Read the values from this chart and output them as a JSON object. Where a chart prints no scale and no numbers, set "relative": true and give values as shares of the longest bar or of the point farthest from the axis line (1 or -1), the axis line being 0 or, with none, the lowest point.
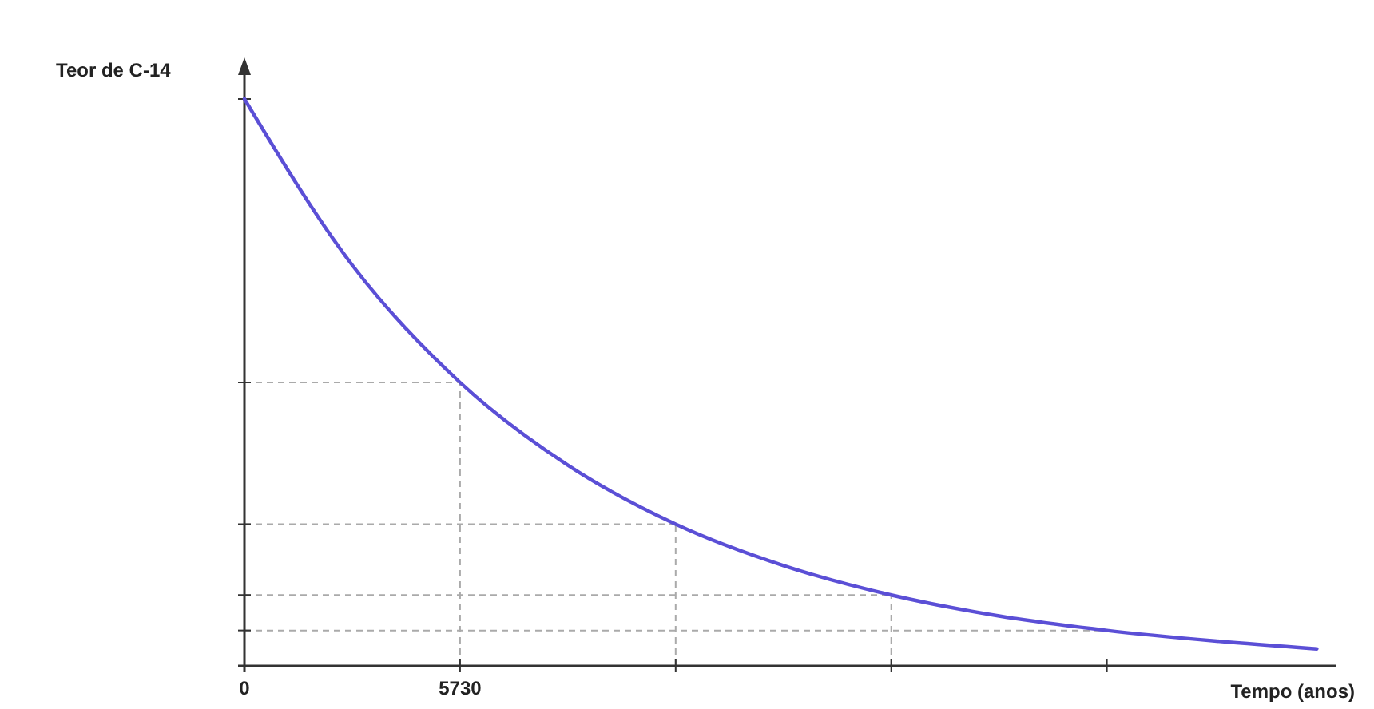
{
  "chart_data": {
    "type": "line",
    "relative": true,
    "ylabel": "Teor de C-14",
    "xlabel": "Tempo (anos)",
    "xlim": [
      0,
      29000
    ],
    "xticks": [
      0,
      5730,
      {
        "value": 11460,
        "label": null
      },
      {
        "value": 17190,
        "label": null
      },
      {
        "value": 22920,
        "label": null
      }
    ],
    "series": [
      {
        "color": "#5b4fd6",
        "x": [
          0,
          2865,
          5730,
          8595,
          11460,
          14325,
          17190,
          20055,
          22920,
          25785,
          28500
        ],
        "values": [
          1,
          0.707,
          0.5,
          0.354,
          0.25,
          0.177,
          0.125,
          0.088,
          0.0625,
          0.044,
          0.03
        ]
      }
    ],
    "ref_lines": [
      {
        "axis": "x",
        "value": 5730,
        "line_style": "dashed",
        "color": "#aaaaaa"
      },
      {
        "axis": "x",
        "value": 11460,
        "line_style": "dashed",
        "color": "#aaaaaa"
      },
      {
        "axis": "x",
        "value": 17190,
        "line_style": "dashed",
        "color": "#aaaaaa"
      },
      {
        "axis": "y",
        "value": 0.5,
        "line_style": "dashed",
        "color": "#aaaaaa"
      },
      {
        "axis": "y",
        "value": 0.25,
        "line_style": "dashed",
        "color": "#aaaaaa"
      },
      {
        "axis": "y",
        "value": 0.125,
        "line_style": "dashed",
        "color": "#aaaaaa"
      },
      {
        "axis": "y",
        "value": 0.0625,
        "line_style": "dashed",
        "color": "#aaaaaa"
      }
    ],
    "marker": "none",
    "line_style": "solid"
  }
}
